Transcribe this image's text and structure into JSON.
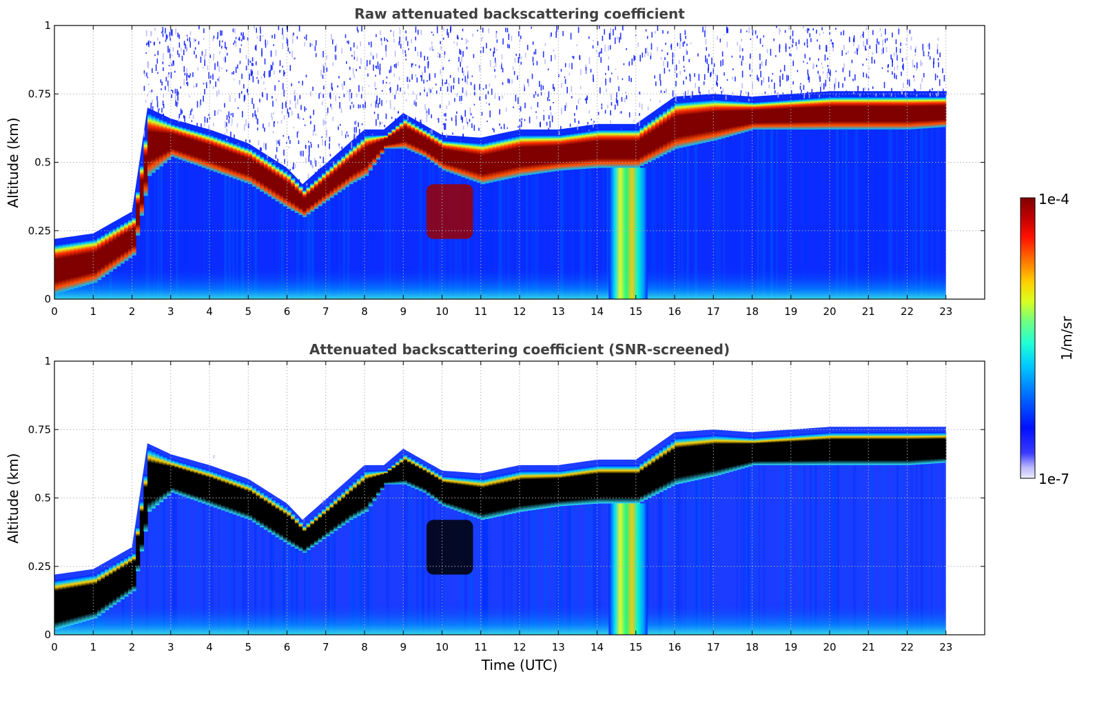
{
  "chart_data": [
    {
      "type": "heatmap",
      "title": "Raw attenuated backscattering coefficient",
      "xlabel": "",
      "ylabel": "Altitude (km)",
      "xlim": [
        0,
        24
      ],
      "ylim": [
        0,
        1
      ],
      "x_ticks": [
        "0",
        "1",
        "2",
        "3",
        "4",
        "5",
        "6",
        "7",
        "8",
        "9",
        "10",
        "11",
        "12",
        "13",
        "14",
        "15",
        "16",
        "17",
        "18",
        "19",
        "20",
        "21",
        "22",
        "23"
      ],
      "y_ticks": [
        "0",
        "0.25",
        "0.5",
        "0.75",
        "1"
      ],
      "grid": true,
      "data_end_time": 23,
      "high_backscatter_layer": {
        "time": [
          0,
          1,
          2,
          2.4,
          3,
          4,
          5,
          6,
          6.4,
          7.6,
          8,
          8.5,
          9,
          9.5,
          10,
          11,
          12,
          13,
          14,
          15,
          16,
          17,
          18,
          19,
          20,
          21,
          22,
          23
        ],
        "base_km": [
          0.02,
          0.06,
          0.16,
          0.45,
          0.52,
          0.47,
          0.42,
          0.33,
          0.3,
          0.42,
          0.45,
          0.55,
          0.55,
          0.52,
          0.47,
          0.42,
          0.45,
          0.47,
          0.48,
          0.48,
          0.55,
          0.58,
          0.62,
          0.62,
          0.62,
          0.62,
          0.62,
          0.63
        ],
        "top_km": [
          0.2,
          0.22,
          0.3,
          0.68,
          0.64,
          0.6,
          0.55,
          0.46,
          0.4,
          0.55,
          0.6,
          0.6,
          0.66,
          0.62,
          0.58,
          0.57,
          0.6,
          0.6,
          0.62,
          0.62,
          0.72,
          0.73,
          0.72,
          0.73,
          0.74,
          0.74,
          0.74,
          0.74
        ]
      },
      "low_cloud_patch": {
        "time": [
          9.6,
          10.8
        ],
        "base_km": 0.22,
        "top_km": 0.42
      },
      "fog_signal_period": {
        "time": [
          14.3,
          15.3
        ],
        "note": ""
      }
    },
    {
      "type": "heatmap",
      "title": "Attenuated backscattering coefficient (SNR-screened)",
      "xlabel": "Time (UTC)",
      "ylabel": "Altitude (km)",
      "xlim": [
        0,
        24
      ],
      "ylim": [
        0,
        1
      ],
      "x_ticks": [
        "0",
        "1",
        "2",
        "3",
        "4",
        "5",
        "6",
        "7",
        "8",
        "9",
        "10",
        "11",
        "12",
        "13",
        "14",
        "15",
        "16",
        "17",
        "18",
        "19",
        "20",
        "21",
        "22",
        "23"
      ],
      "y_ticks": [
        "0",
        "0.25",
        "0.5",
        "0.75",
        "1"
      ],
      "grid": true,
      "data_end_time": 23
    }
  ],
  "colorbar": {
    "label": "1/m/sr",
    "max_label": "1e-4",
    "min_label": "1e-7",
    "colormap": "jet"
  },
  "colors": {
    "background_blue": "#0b2bff",
    "layer_core": "#800000",
    "screened_core": "#000000",
    "noise": "#1a2cff",
    "title": "#404040",
    "grid": "#b0b0b0"
  }
}
